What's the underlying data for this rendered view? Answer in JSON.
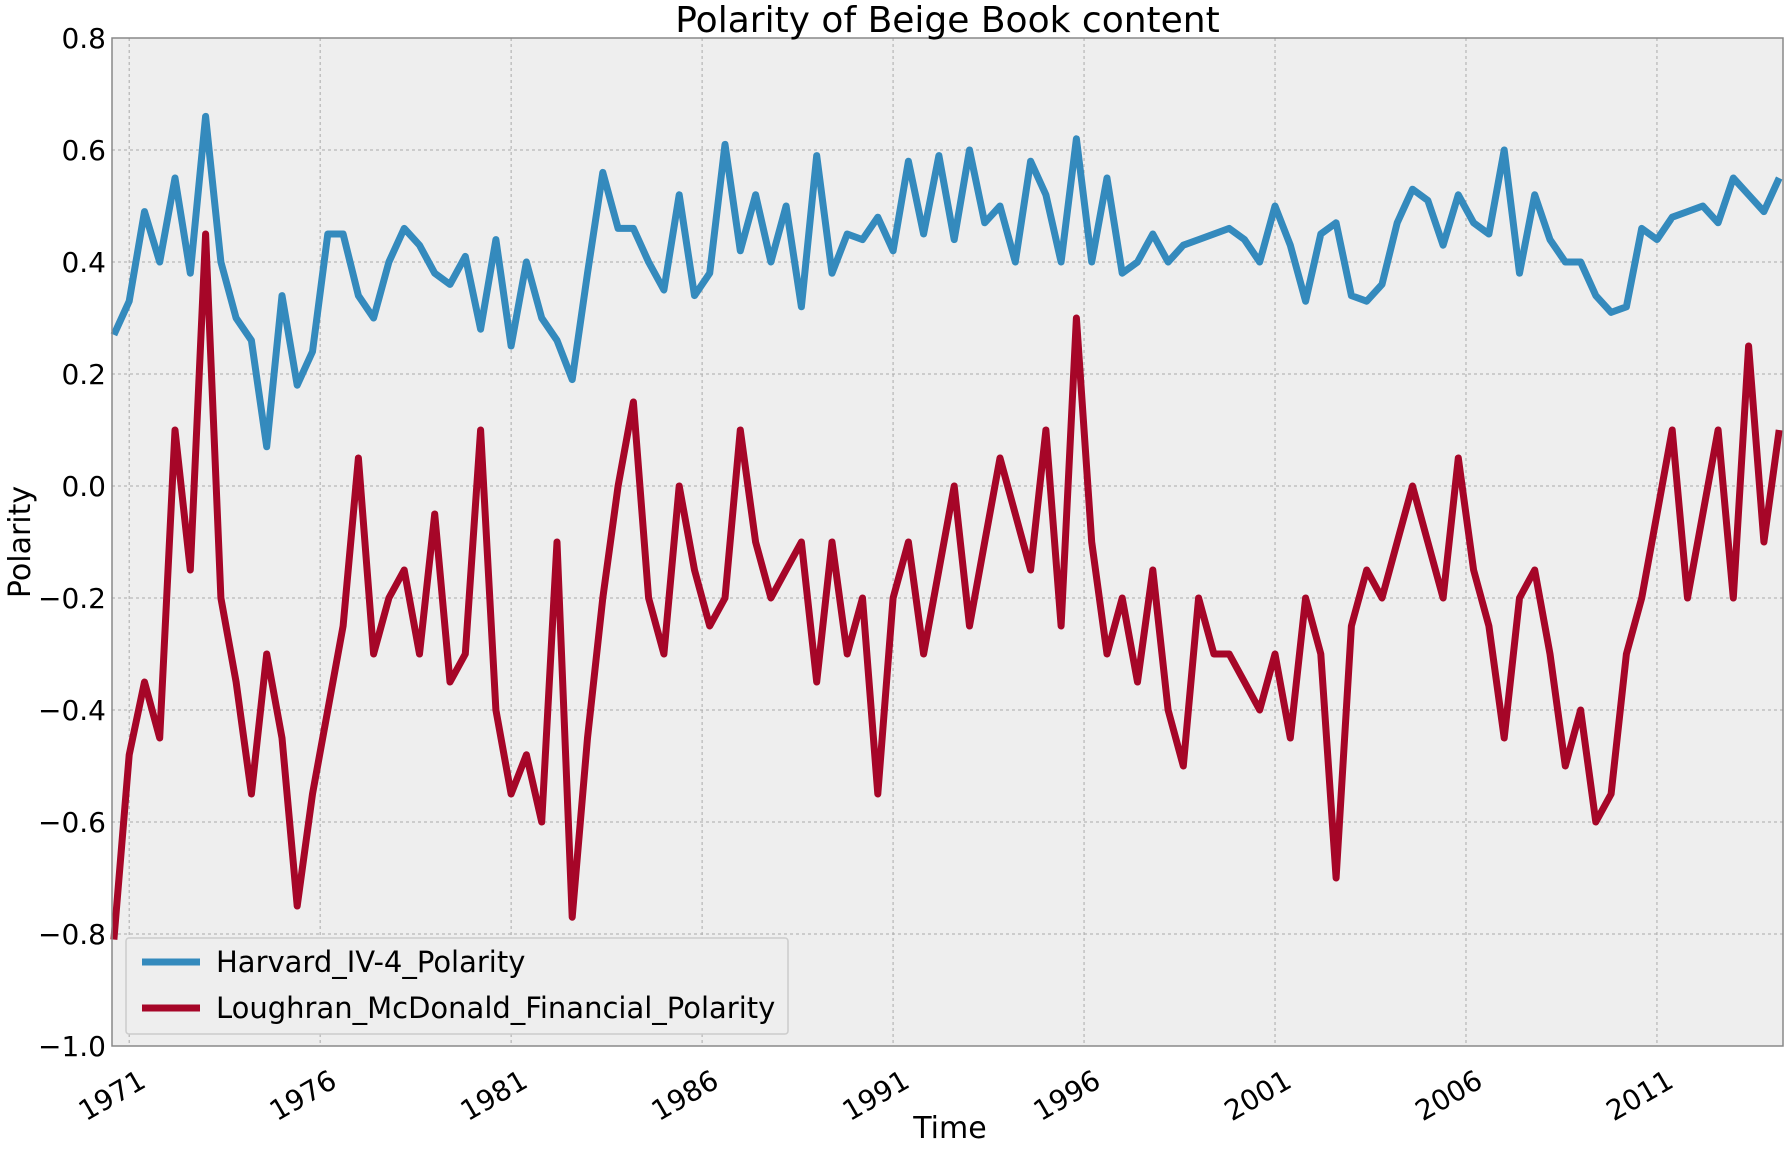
{
  "chart_data": {
    "type": "line",
    "title": "Polarity of Beige Book content",
    "xlabel": "Time",
    "ylabel": "Polarity",
    "xlim": [
      1970.55,
      2014.3
    ],
    "ylim": [
      -1.0,
      0.8
    ],
    "x_ticks": [
      1971,
      1976,
      1981,
      1986,
      1991,
      1996,
      2001,
      2006,
      2011
    ],
    "x_tick_labels": [
      "1971",
      "1976",
      "1981",
      "1986",
      "1991",
      "1996",
      "2001",
      "2006",
      "2011"
    ],
    "y_ticks": [
      -1.0,
      -0.8,
      -0.6,
      -0.4,
      -0.2,
      0.0,
      0.2,
      0.4,
      0.6,
      0.8
    ],
    "y_tick_labels": [
      "−1.0",
      "−0.8",
      "−0.6",
      "−0.4",
      "−0.2",
      "0.0",
      "0.2",
      "0.4",
      "0.6",
      "0.8"
    ],
    "grid": true,
    "legend_position": "lower-left",
    "series": [
      {
        "name": "Harvard_IV-4_Polarity",
        "color": "#348ABD",
        "x": [
          1970.6,
          1971.0,
          1971.4,
          1971.8,
          1972.2,
          1972.6,
          1973.0,
          1973.4,
          1973.8,
          1974.2,
          1974.6,
          1975.0,
          1975.4,
          1975.8,
          1976.2,
          1976.6,
          1977.0,
          1977.4,
          1977.8,
          1978.2,
          1978.6,
          1979.0,
          1979.4,
          1979.8,
          1980.2,
          1980.6,
          1981.0,
          1981.4,
          1981.8,
          1982.2,
          1982.6,
          1983.0,
          1983.4,
          1983.8,
          1984.2,
          1984.6,
          1985.0,
          1985.4,
          1985.8,
          1986.2,
          1986.6,
          1987.0,
          1987.4,
          1987.8,
          1988.2,
          1988.6,
          1989.0,
          1989.4,
          1989.8,
          1990.2,
          1990.6,
          1991.0,
          1991.4,
          1991.8,
          1992.2,
          1992.6,
          1993.0,
          1993.4,
          1993.8,
          1994.2,
          1994.6,
          1995.0,
          1995.4,
          1995.8,
          1996.2,
          1996.6,
          1997.0,
          1997.4,
          1997.8,
          1998.2,
          1998.6,
          1999.0,
          1999.4,
          1999.8,
          2000.2,
          2000.6,
          2001.0,
          2001.4,
          2001.8,
          2002.2,
          2002.6,
          2003.0,
          2003.4,
          2003.8,
          2004.2,
          2004.6,
          2005.0,
          2005.4,
          2005.8,
          2006.2,
          2006.6,
          2007.0,
          2007.4,
          2007.8,
          2008.2,
          2008.6,
          2009.0,
          2009.4,
          2009.8,
          2010.2,
          2010.6,
          2011.0,
          2011.4,
          2011.8,
          2012.2,
          2012.6,
          2013.0,
          2013.4,
          2013.8,
          2014.2
        ],
        "y": [
          0.27,
          0.33,
          0.49,
          0.4,
          0.55,
          0.38,
          0.66,
          0.4,
          0.3,
          0.26,
          0.07,
          0.34,
          0.18,
          0.24,
          0.45,
          0.45,
          0.34,
          0.3,
          0.4,
          0.46,
          0.43,
          0.38,
          0.36,
          0.41,
          0.28,
          0.44,
          0.25,
          0.4,
          0.3,
          0.26,
          0.19,
          0.38,
          0.56,
          0.46,
          0.46,
          0.4,
          0.35,
          0.52,
          0.34,
          0.38,
          0.61,
          0.42,
          0.52,
          0.4,
          0.5,
          0.32,
          0.59,
          0.38,
          0.45,
          0.44,
          0.48,
          0.42,
          0.58,
          0.45,
          0.59,
          0.44,
          0.6,
          0.47,
          0.5,
          0.4,
          0.58,
          0.52,
          0.4,
          0.62,
          0.4,
          0.55,
          0.38,
          0.4,
          0.45,
          0.4,
          0.43,
          0.44,
          0.45,
          0.46,
          0.44,
          0.4,
          0.5,
          0.43,
          0.33,
          0.45,
          0.47,
          0.34,
          0.33,
          0.36,
          0.47,
          0.53,
          0.51,
          0.43,
          0.52,
          0.47,
          0.45,
          0.6,
          0.38,
          0.52,
          0.44,
          0.4,
          0.4,
          0.34,
          0.31,
          0.32,
          0.46,
          0.44,
          0.48,
          0.49,
          0.5,
          0.47,
          0.55,
          0.52,
          0.49,
          0.55
        ]
      },
      {
        "name": "Loughran_McDonald_Financial_Polarity",
        "color": "#A60628",
        "x": [
          1970.6,
          1971.0,
          1971.4,
          1971.8,
          1972.2,
          1972.6,
          1973.0,
          1973.4,
          1973.8,
          1974.2,
          1974.6,
          1975.0,
          1975.4,
          1975.8,
          1976.2,
          1976.6,
          1977.0,
          1977.4,
          1977.8,
          1978.2,
          1978.6,
          1979.0,
          1979.4,
          1979.8,
          1980.2,
          1980.6,
          1981.0,
          1981.4,
          1981.8,
          1982.2,
          1982.6,
          1983.0,
          1983.4,
          1983.8,
          1984.2,
          1984.6,
          1985.0,
          1985.4,
          1985.8,
          1986.2,
          1986.6,
          1987.0,
          1987.4,
          1987.8,
          1988.2,
          1988.6,
          1989.0,
          1989.4,
          1989.8,
          1990.2,
          1990.6,
          1991.0,
          1991.4,
          1991.8,
          1992.2,
          1992.6,
          1993.0,
          1993.4,
          1993.8,
          1994.2,
          1994.6,
          1995.0,
          1995.4,
          1995.8,
          1996.2,
          1996.6,
          1997.0,
          1997.4,
          1997.8,
          1998.2,
          1998.6,
          1999.0,
          1999.4,
          1999.8,
          2000.2,
          2000.6,
          2001.0,
          2001.4,
          2001.8,
          2002.2,
          2002.6,
          2003.0,
          2003.4,
          2003.8,
          2004.2,
          2004.6,
          2005.0,
          2005.4,
          2005.8,
          2006.2,
          2006.6,
          2007.0,
          2007.4,
          2007.8,
          2008.2,
          2008.6,
          2009.0,
          2009.4,
          2009.8,
          2010.2,
          2010.6,
          2011.0,
          2011.4,
          2011.8,
          2012.2,
          2012.6,
          2013.0,
          2013.4,
          2013.8,
          2014.2
        ],
        "y": [
          -0.81,
          -0.48,
          -0.35,
          -0.45,
          0.1,
          -0.15,
          0.45,
          -0.2,
          -0.35,
          -0.55,
          -0.3,
          -0.45,
          -0.75,
          -0.55,
          -0.4,
          -0.25,
          0.05,
          -0.3,
          -0.2,
          -0.15,
          -0.3,
          -0.05,
          -0.35,
          -0.3,
          0.1,
          -0.4,
          -0.55,
          -0.48,
          -0.6,
          -0.1,
          -0.77,
          -0.45,
          -0.2,
          0.0,
          0.15,
          -0.2,
          -0.3,
          0.0,
          -0.15,
          -0.25,
          -0.2,
          0.1,
          -0.1,
          -0.2,
          -0.15,
          -0.1,
          -0.35,
          -0.1,
          -0.3,
          -0.2,
          -0.55,
          -0.2,
          -0.1,
          -0.3,
          -0.15,
          0.0,
          -0.25,
          -0.1,
          0.05,
          -0.05,
          -0.15,
          0.1,
          -0.25,
          0.3,
          -0.1,
          -0.3,
          -0.2,
          -0.35,
          -0.15,
          -0.4,
          -0.5,
          -0.2,
          -0.3,
          -0.3,
          -0.35,
          -0.4,
          -0.3,
          -0.45,
          -0.2,
          -0.3,
          -0.7,
          -0.25,
          -0.15,
          -0.2,
          -0.1,
          0.0,
          -0.1,
          -0.2,
          0.05,
          -0.15,
          -0.25,
          -0.45,
          -0.2,
          -0.15,
          -0.3,
          -0.5,
          -0.4,
          -0.6,
          -0.55,
          -0.3,
          -0.2,
          -0.05,
          0.1,
          -0.2,
          -0.05,
          0.1,
          -0.2,
          0.25,
          -0.1,
          0.1
        ]
      }
    ]
  }
}
